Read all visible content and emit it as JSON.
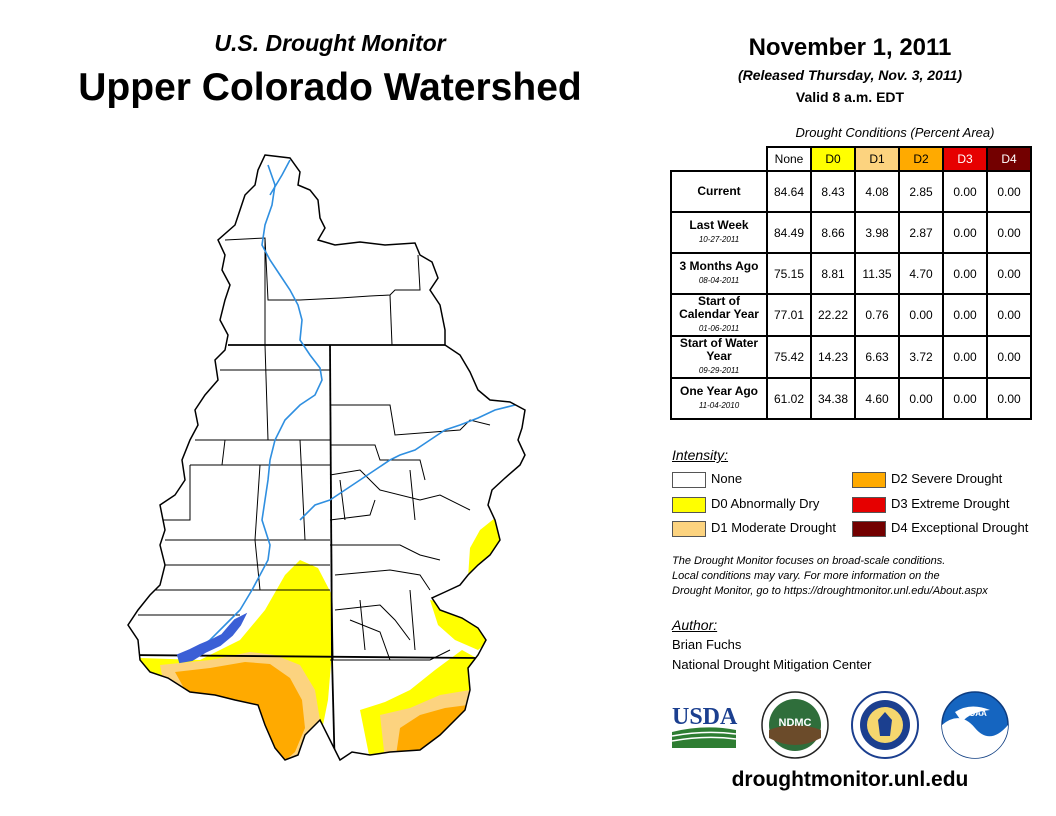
{
  "header": {
    "subtitle": "U.S. Drought Monitor",
    "title": "Upper Colorado Watershed",
    "date": "November 1, 2011",
    "released": "(Released Thursday, Nov. 3, 2011)",
    "valid": "Valid 8 a.m. EDT"
  },
  "table": {
    "caption": "Drought Conditions (Percent Area)",
    "columns": [
      "None",
      "D0",
      "D1",
      "D2",
      "D3",
      "D4"
    ],
    "column_colors": [
      "#ffffff",
      "#ffff00",
      "#fcd37f",
      "#ffaa00",
      "#e60000",
      "#730000"
    ],
    "column_text_colors": [
      "#000000",
      "#000000",
      "#000000",
      "#000000",
      "#ffffff",
      "#ffffff"
    ],
    "rows": [
      {
        "label": "Current",
        "sub": "",
        "values": [
          "84.64",
          "8.43",
          "4.08",
          "2.85",
          "0.00",
          "0.00"
        ]
      },
      {
        "label": "Last Week",
        "sub": "10-27-2011",
        "values": [
          "84.49",
          "8.66",
          "3.98",
          "2.87",
          "0.00",
          "0.00"
        ]
      },
      {
        "label": "3 Months Ago",
        "sub": "08-04-2011",
        "values": [
          "75.15",
          "8.81",
          "11.35",
          "4.70",
          "0.00",
          "0.00"
        ]
      },
      {
        "label": "Start of Calendar Year",
        "sub": "01-06-2011",
        "values": [
          "77.01",
          "22.22",
          "0.76",
          "0.00",
          "0.00",
          "0.00"
        ]
      },
      {
        "label": "Start of Water Year",
        "sub": "09-29-2011",
        "values": [
          "75.42",
          "14.23",
          "6.63",
          "3.72",
          "0.00",
          "0.00"
        ]
      },
      {
        "label": "One Year Ago",
        "sub": "11-04-2010",
        "values": [
          "61.02",
          "34.38",
          "4.60",
          "0.00",
          "0.00",
          "0.00"
        ]
      }
    ]
  },
  "legend": {
    "title": "Intensity:",
    "items": [
      {
        "label": "None",
        "color": "#ffffff"
      },
      {
        "label": "D0 Abnormally Dry",
        "color": "#ffff00"
      },
      {
        "label": "D1 Moderate Drought",
        "color": "#fcd37f"
      },
      {
        "label": "D2 Severe Drought",
        "color": "#ffaa00"
      },
      {
        "label": "D3 Extreme Drought",
        "color": "#e60000"
      },
      {
        "label": "D4 Exceptional Drought",
        "color": "#730000"
      }
    ]
  },
  "note": {
    "line1": "The Drought Monitor focuses on broad-scale conditions.",
    "line2": "Local conditions may vary. For more information on the",
    "line3": "Drought Monitor, go to https://droughtmonitor.unl.edu/About.aspx"
  },
  "author": {
    "title": "Author:",
    "name": "Brian Fuchs",
    "org": "National Drought Mitigation Center"
  },
  "logos": {
    "usda": "USDA",
    "ndmc": "NDMC",
    "noaa": "NOAA"
  },
  "footer": {
    "website": "droughtmonitor.unl.edu"
  },
  "map_colors": {
    "river": "#2f8fe0",
    "lake": "#3b5fd6",
    "d0": "#ffff00",
    "d1": "#fcd37f",
    "d2": "#ffaa00"
  }
}
